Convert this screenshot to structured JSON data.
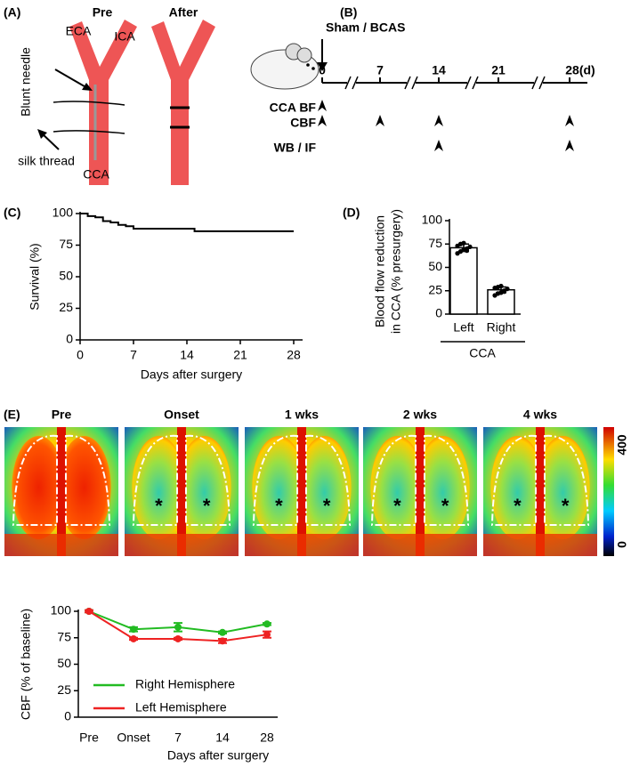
{
  "panel_a": {
    "label": "(A)",
    "pre": "Pre",
    "after": "After",
    "eca": "ECA",
    "ica": "ICA",
    "needle": "Blunt needle",
    "thread": "silk thread",
    "cca": "CCA"
  },
  "panel_b": {
    "label": "(B)",
    "procedure": "Sham / BCAS",
    "timeline_ticks": [
      "0",
      "7",
      "14",
      "21",
      "28(d)"
    ],
    "rows": [
      "CCA BF",
      "CBF",
      "WB / IF"
    ]
  },
  "panel_e": {
    "label": "(E)",
    "images": [
      {
        "title": "Pre"
      },
      {
        "title": "Onset",
        "marks": [
          "*",
          "*"
        ]
      },
      {
        "title": "1 wks",
        "marks": [
          "*",
          "*"
        ]
      },
      {
        "title": "2 wks",
        "marks": [
          "*",
          "*"
        ]
      },
      {
        "title": "4 wks",
        "marks": [
          "*",
          "*"
        ]
      }
    ],
    "colorbar_ticks": [
      "400",
      "0"
    ]
  },
  "chart_data": [
    {
      "type": "line",
      "panel": "(C)",
      "y_label": "Survival (%)",
      "x_label": "Days after surgery",
      "x": [
        0,
        1,
        1,
        2,
        2,
        3,
        3,
        4,
        4,
        5,
        5,
        6,
        6,
        7,
        7,
        15,
        15,
        28
      ],
      "series": [
        {
          "color": "#000000",
          "values": [
            100,
            100,
            98,
            98,
            97,
            97,
            94,
            94,
            93,
            93,
            91,
            91,
            90,
            90,
            88,
            88,
            86,
            86
          ]
        }
      ],
      "xlim": [
        0,
        28
      ],
      "ylim": [
        0,
        100
      ],
      "xticks": [
        0,
        7,
        14,
        21,
        28
      ],
      "yticks": [
        0,
        25,
        50,
        75,
        100
      ]
    },
    {
      "type": "bar",
      "panel": "(D)",
      "y_label": [
        "Blood flow reduction",
        "in CCA (% presurgery)"
      ],
      "group_label": "CCA",
      "categories": [
        "Left",
        "Right"
      ],
      "values": [
        71,
        26
      ],
      "errors": [
        4,
        3
      ],
      "points": [
        [
          65,
          67,
          69,
          70,
          72,
          73,
          75,
          76,
          68
        ],
        [
          20,
          22,
          23,
          25,
          27,
          28,
          29,
          30,
          24
        ]
      ],
      "color": "#ffffff",
      "ylim": [
        0,
        100
      ],
      "yticks": [
        0,
        25,
        50,
        75,
        100
      ]
    },
    {
      "type": "line",
      "y_label": "CBF (% of baseline)",
      "x_label": "Days after surgery",
      "categories": [
        "Pre",
        "Onset",
        "7",
        "14",
        "28"
      ],
      "series": [
        {
          "name": "Right Hemisphere",
          "color": "#22bb22",
          "values": [
            100,
            83,
            85,
            80,
            88
          ],
          "errors": [
            1,
            2,
            4,
            1,
            1
          ]
        },
        {
          "name": "Left Hemisphere",
          "color": "#ee2222",
          "values": [
            100,
            74,
            74,
            72,
            78
          ],
          "errors": [
            1,
            1,
            1,
            2,
            3
          ]
        }
      ],
      "ylim": [
        0,
        100
      ],
      "yticks": [
        0,
        25,
        50,
        75,
        100
      ]
    }
  ]
}
